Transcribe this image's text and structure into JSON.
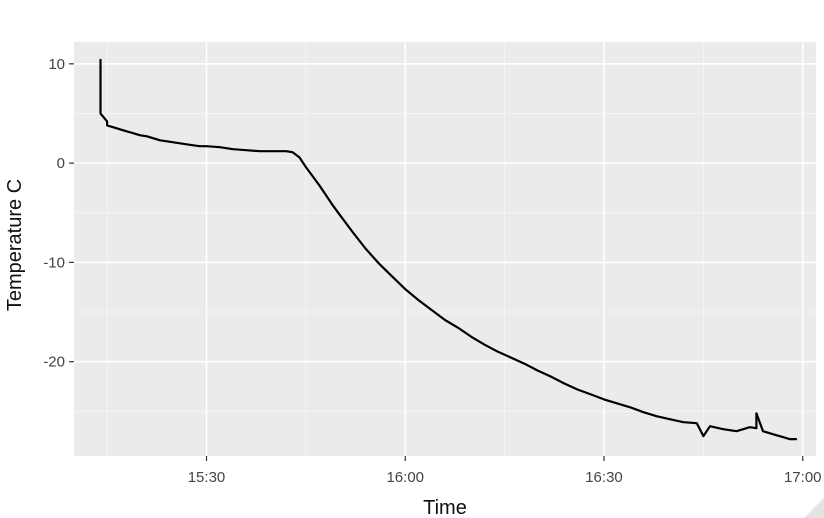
{
  "chart_data": {
    "type": "line",
    "title": "",
    "xlabel": "Time",
    "ylabel": "Temperature C",
    "x_tick_labels": [
      "15:30",
      "16:00",
      "16:30",
      "17:00"
    ],
    "x_ticks": [
      930,
      960,
      990,
      1020
    ],
    "y_ticks": [
      10,
      0,
      -10,
      -20
    ],
    "y_tick_labels": [
      "10",
      "0",
      "-10",
      "-20"
    ],
    "xlim": [
      "15:10",
      "17:02"
    ],
    "ylim": [
      -29.5,
      12.2
    ],
    "grid": true,
    "legend": "none",
    "colors": {
      "panel": "#ebebeb",
      "grid": "#ffffff",
      "line": "#000000"
    },
    "series": [
      {
        "x": [
          "15:14",
          "15:14",
          "15:14",
          "15:15",
          "15:15",
          "15:16",
          "15:17",
          "15:18",
          "15:19",
          "15:20",
          "15:21",
          "15:22",
          "15:23",
          "15:24",
          "15:25",
          "15:26",
          "15:27",
          "15:28",
          "15:29",
          "15:30",
          "15:32",
          "15:34",
          "15:36",
          "15:38",
          "15:40",
          "15:42",
          "15:43",
          "15:44",
          "15:45",
          "15:46",
          "15:47",
          "15:48",
          "15:49",
          "15:50",
          "15:52",
          "15:54",
          "15:56",
          "15:58",
          "16:00",
          "16:02",
          "16:04",
          "16:06",
          "16:08",
          "16:10",
          "16:12",
          "16:14",
          "16:16",
          "16:18",
          "16:20",
          "16:22",
          "16:24",
          "16:26",
          "16:28",
          "16:30",
          "16:32",
          "16:34",
          "16:36",
          "16:38",
          "16:40",
          "16:42",
          "16:44",
          "16:45",
          "16:46",
          "16:48",
          "16:50",
          "16:52",
          "16:53",
          "16:53",
          "16:54",
          "16:55",
          "16:56",
          "16:57",
          "16:58",
          "16:59"
        ],
        "y": [
          10.4,
          7,
          5,
          4.2,
          3.8,
          3.6,
          3.4,
          3.2,
          3,
          2.8,
          2.7,
          2.5,
          2.3,
          2.2,
          2.1,
          2,
          1.9,
          1.8,
          1.7,
          1.7,
          1.6,
          1.4,
          1.3,
          1.2,
          1.2,
          1.2,
          1.1,
          0.6,
          -0.4,
          -1.3,
          -2.2,
          -3.2,
          -4.2,
          -5.1,
          -6.9,
          -8.6,
          -10.1,
          -11.4,
          -12.7,
          -13.8,
          -14.8,
          -15.8,
          -16.6,
          -17.5,
          -18.3,
          -19,
          -19.6,
          -20.2,
          -20.9,
          -21.5,
          -22.2,
          -22.8,
          -23.3,
          -23.8,
          -24.2,
          -24.6,
          -25.1,
          -25.5,
          -25.8,
          -26.1,
          -26.2,
          -27.5,
          -26.5,
          -26.8,
          -27,
          -26.6,
          -26.7,
          -25.2,
          -27,
          -27.2,
          -27.4,
          -27.6,
          -27.8,
          -27.8
        ]
      }
    ]
  }
}
